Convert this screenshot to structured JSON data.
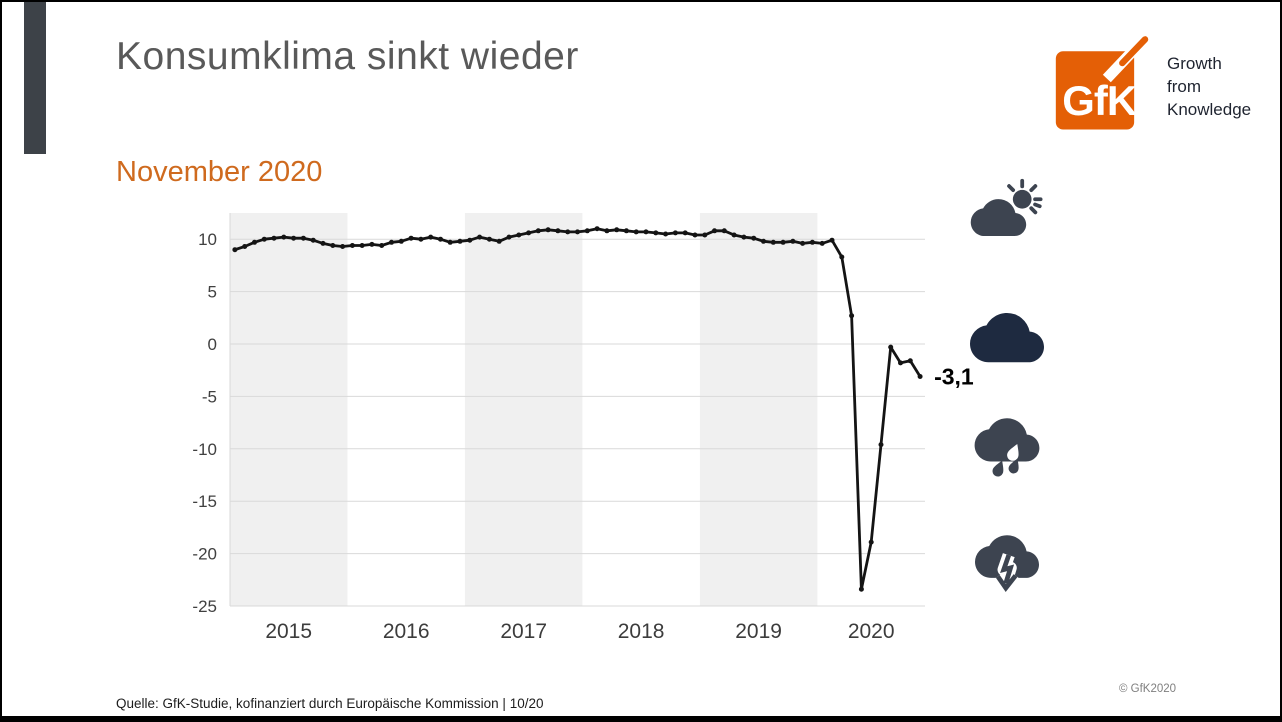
{
  "page": {
    "title": "Konsumklima sinkt wieder",
    "subtitle": "November 2020",
    "source": "Quelle: GfK-Studie, kofinanziert durch Europäische Kommission | 10/20",
    "copyright": "© GfK2020"
  },
  "logo": {
    "text": "GfK",
    "tagline": [
      "Growth",
      "from",
      "Knowledge"
    ],
    "orange": "#e45f06"
  },
  "icons": [
    {
      "name": "sun-behind-cloud-icon",
      "meaning": "improving"
    },
    {
      "name": "dark-cloud-icon",
      "meaning": "cloudy"
    },
    {
      "name": "rain-cloud-icon",
      "meaning": "rain"
    },
    {
      "name": "cloud-arrow-down-icon",
      "meaning": "falling"
    }
  ],
  "colors": {
    "accent_orange": "#cf6a1e",
    "logo_orange": "#e45f06",
    "title_gray": "#595959",
    "line_black": "#141414",
    "band_gray": "#f0f0f0",
    "grid_gray": "#d9d9d9",
    "icon_slate": "#3d4450",
    "icon_navy": "#1e2a40",
    "sidebar_dark": "#3d4248"
  },
  "chart_data": {
    "type": "line",
    "title": "GfK Konsumklima monthly indicator",
    "x_unit": "month",
    "x_years": [
      2015,
      2016,
      2017,
      2018,
      2019,
      2020
    ],
    "monthly_values": [
      9.0,
      9.3,
      9.7,
      10.0,
      10.1,
      10.2,
      10.1,
      10.1,
      9.9,
      9.6,
      9.4,
      9.3,
      9.4,
      9.4,
      9.5,
      9.4,
      9.7,
      9.8,
      10.1,
      10.0,
      10.2,
      10.0,
      9.7,
      9.8,
      9.9,
      10.2,
      10.0,
      9.8,
      10.2,
      10.4,
      10.6,
      10.8,
      10.9,
      10.8,
      10.7,
      10.7,
      10.8,
      11.0,
      10.8,
      10.9,
      10.8,
      10.7,
      10.7,
      10.6,
      10.5,
      10.6,
      10.6,
      10.4,
      10.4,
      10.8,
      10.8,
      10.4,
      10.2,
      10.1,
      9.8,
      9.7,
      9.7,
      9.8,
      9.6,
      9.7,
      9.6,
      9.9,
      8.3,
      2.7,
      -23.4,
      -18.9,
      -9.6,
      -0.3,
      -1.8,
      -1.6,
      -3.1
    ],
    "yticks": [
      10,
      5,
      0,
      -5,
      -10,
      -15,
      -20,
      -25
    ],
    "ylim": [
      -25,
      12.5
    ],
    "shaded_years": [
      2015,
      2017,
      2019
    ],
    "grid": true,
    "legend_position": "none",
    "last_point_label": "-3,1"
  }
}
